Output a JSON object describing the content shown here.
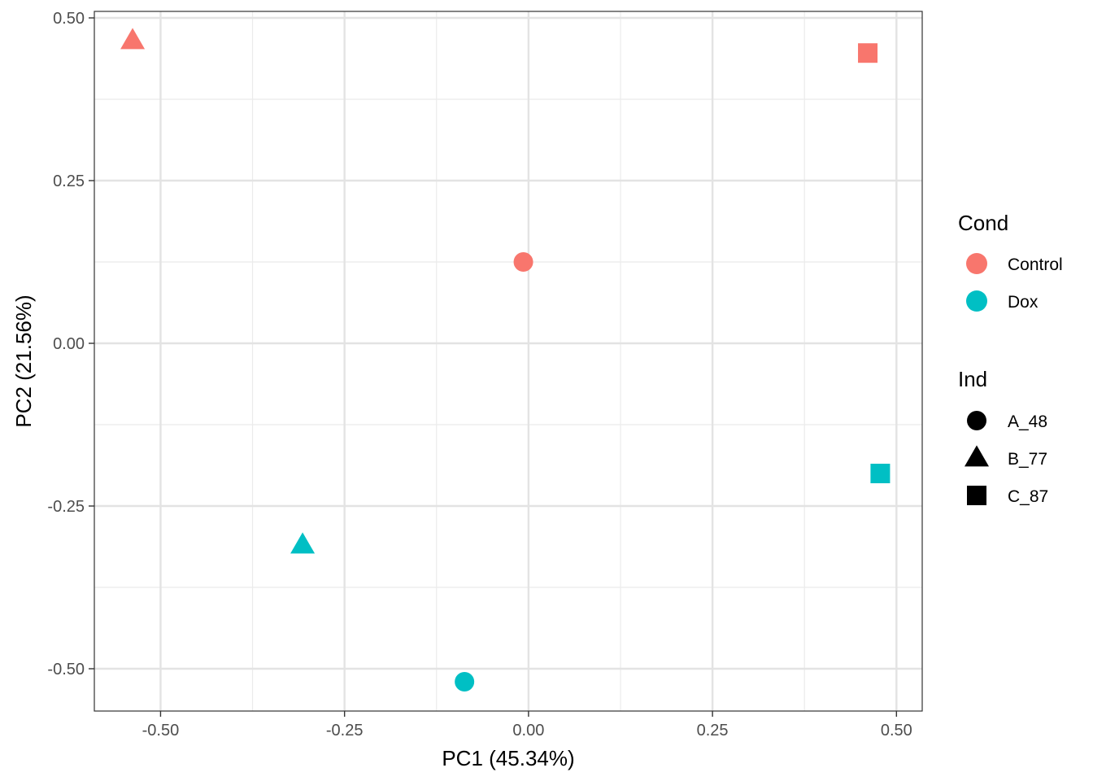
{
  "chart_data": {
    "type": "scatter",
    "title": "",
    "xlabel": "PC1 (45.34%)",
    "ylabel": "PC2 (21.56%)",
    "xlim": [
      -0.59,
      0.535
    ],
    "ylim": [
      -0.565,
      0.51
    ],
    "x_ticks": [
      -0.5,
      -0.25,
      0.0,
      0.25,
      0.5
    ],
    "x_tick_labels": [
      "-0.50",
      "-0.25",
      "0.00",
      "0.25",
      "0.50"
    ],
    "y_ticks": [
      -0.5,
      -0.25,
      0.0,
      0.25,
      0.5
    ],
    "y_tick_labels": [
      "-0.50",
      "-0.25",
      "0.00",
      "0.25",
      "0.50"
    ],
    "grid": true,
    "legend_placement": "right",
    "points": [
      {
        "x": -0.538,
        "y": 0.465,
        "cond": "Control",
        "ind": "B_77"
      },
      {
        "x": 0.461,
        "y": 0.446,
        "cond": "Control",
        "ind": "C_87"
      },
      {
        "x": -0.007,
        "y": 0.125,
        "cond": "Control",
        "ind": "A_48"
      },
      {
        "x": 0.478,
        "y": -0.2,
        "cond": "Dox",
        "ind": "C_87"
      },
      {
        "x": -0.307,
        "y": -0.31,
        "cond": "Dox",
        "ind": "B_77"
      },
      {
        "x": -0.087,
        "y": -0.52,
        "cond": "Dox",
        "ind": "A_48"
      }
    ],
    "legend": {
      "color_title": "Cond",
      "color_items": [
        {
          "label": "Control",
          "color": "#F8766D"
        },
        {
          "label": "Dox",
          "color": "#00BFC4"
        }
      ],
      "shape_title": "Ind",
      "shape_items": [
        {
          "label": "A_48",
          "shape": "circle"
        },
        {
          "label": "B_77",
          "shape": "triangle"
        },
        {
          "label": "C_87",
          "shape": "square"
        }
      ]
    }
  }
}
